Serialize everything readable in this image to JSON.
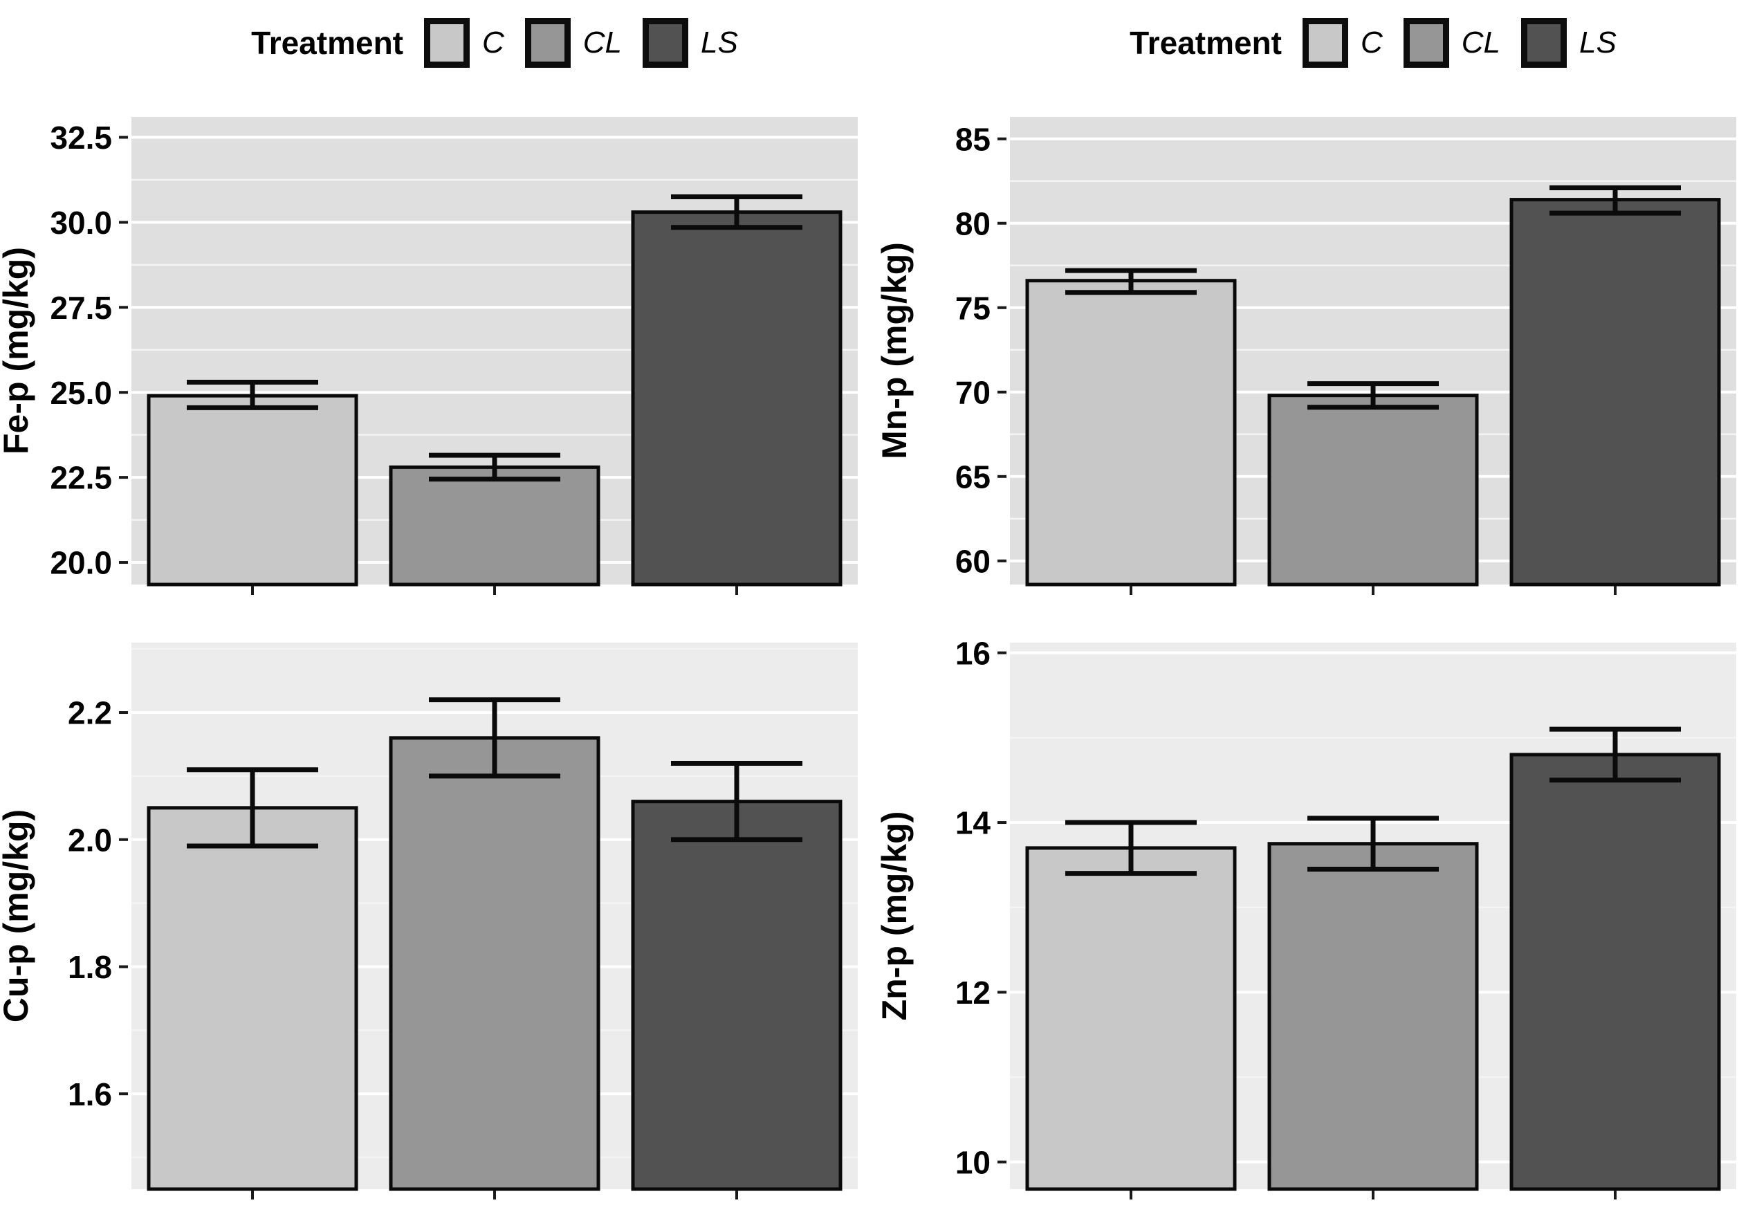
{
  "legend": {
    "title": "Treatment",
    "items": [
      {
        "label": "C",
        "color": "#c8c8c8"
      },
      {
        "label": "CL",
        "color": "#969696"
      },
      {
        "label": "LS",
        "color": "#525252"
      }
    ]
  },
  "style": {
    "grid_major": "#ffffff",
    "grid_minor": "#f4f4f4",
    "bar_stroke": "#0a0a0a",
    "tick_color": "#1a1a1a"
  },
  "chart_data": [
    {
      "type": "bar",
      "id": "fe-p",
      "position": "top",
      "ylabel": "Fe-p (mg/kg)",
      "xlabel": "",
      "categories": [
        "C",
        "CL",
        "LS"
      ],
      "values": [
        24.9,
        22.8,
        30.3
      ],
      "error_low": [
        24.55,
        22.45,
        29.85
      ],
      "error_high": [
        25.3,
        23.15,
        30.75
      ],
      "yticks": [
        20.0,
        22.5,
        25.0,
        27.5,
        30.0,
        32.5
      ],
      "ytick_labels": [
        "20.0",
        "22.5",
        "25.0",
        "27.5",
        "30.0",
        "32.5"
      ],
      "ylim": [
        19.35,
        33.1
      ],
      "grid": true,
      "legend_position": "top",
      "panel_bg": "#dfdfdf"
    },
    {
      "type": "bar",
      "id": "mn-p",
      "position": "top",
      "ylabel": "Mn-p (mg/kg)",
      "xlabel": "",
      "categories": [
        "C",
        "CL",
        "LS"
      ],
      "values": [
        76.6,
        69.8,
        81.4
      ],
      "error_low": [
        75.9,
        69.1,
        80.6
      ],
      "error_high": [
        77.2,
        70.5,
        82.1
      ],
      "yticks": [
        60,
        65,
        70,
        75,
        80,
        85
      ],
      "ytick_labels": [
        "60",
        "65",
        "70",
        "75",
        "80",
        "85"
      ],
      "ylim": [
        58.6,
        86.3
      ],
      "grid": true,
      "legend_position": "top",
      "panel_bg": "#dfdfdf"
    },
    {
      "type": "bar",
      "id": "cu-p",
      "position": "bottom",
      "ylabel": "Cu-p (mg/kg)",
      "xlabel": "",
      "categories": [
        "C",
        "CL",
        "LS"
      ],
      "values": [
        2.05,
        2.16,
        2.06
      ],
      "error_low": [
        1.99,
        2.1,
        2.0
      ],
      "error_high": [
        2.11,
        2.22,
        2.12
      ],
      "yticks": [
        1.6,
        1.8,
        2.0,
        2.2
      ],
      "ytick_labels": [
        "1.6",
        "1.8",
        "2.0",
        "2.2"
      ],
      "ylim": [
        1.45,
        2.31
      ],
      "grid": true,
      "legend_position": "none",
      "panel_bg": "#ececec"
    },
    {
      "type": "bar",
      "id": "zn-p",
      "position": "bottom",
      "ylabel": "Zn-p (mg/kg)",
      "xlabel": "",
      "categories": [
        "C",
        "CL",
        "LS"
      ],
      "values": [
        13.7,
        13.75,
        14.8
      ],
      "error_low": [
        13.4,
        13.45,
        14.5
      ],
      "error_high": [
        14.0,
        14.05,
        15.1
      ],
      "yticks": [
        10,
        12,
        14,
        16
      ],
      "ytick_labels": [
        "10",
        "12",
        "14",
        "16"
      ],
      "ylim": [
        9.68,
        16.12
      ],
      "grid": true,
      "legend_position": "none",
      "panel_bg": "#ececec"
    }
  ]
}
